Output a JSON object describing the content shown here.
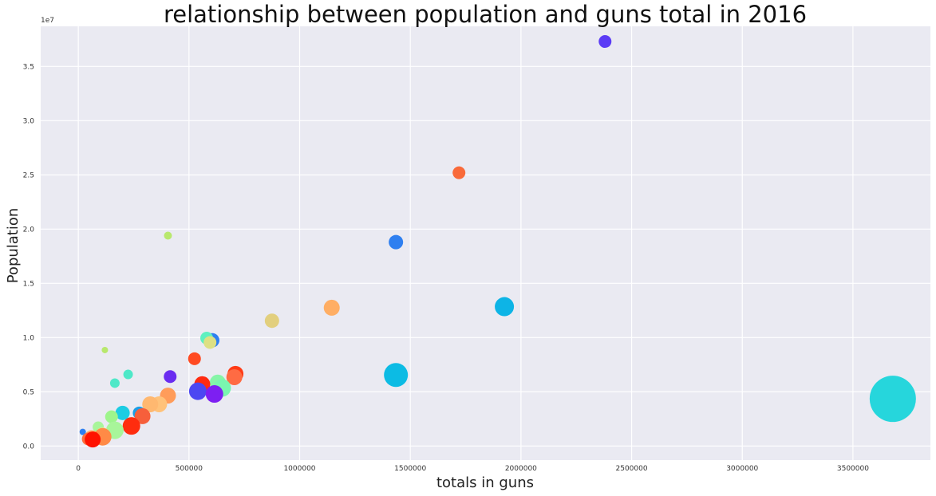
{
  "chart_data": {
    "type": "scatter",
    "title": "relationship between population and guns total in 2016",
    "xlabel": "totals in guns",
    "ylabel": "Population",
    "y_offset_label": "1e7",
    "xlim": [
      -170000,
      3850000
    ],
    "ylim": [
      -1300000,
      38700000
    ],
    "x_ticks": [
      {
        "value": 0,
        "label": "0"
      },
      {
        "value": 500000,
        "label": "500000"
      },
      {
        "value": 1000000,
        "label": "1000000"
      },
      {
        "value": 1500000,
        "label": "1500000"
      },
      {
        "value": 2000000,
        "label": "2000000"
      },
      {
        "value": 2500000,
        "label": "2500000"
      },
      {
        "value": 3000000,
        "label": "3000000"
      },
      {
        "value": 3500000,
        "label": "3500000"
      }
    ],
    "y_ticks": [
      {
        "value": 0,
        "label": "0.0"
      },
      {
        "value": 5000000,
        "label": "0.5"
      },
      {
        "value": 10000000,
        "label": "1.0"
      },
      {
        "value": 15000000,
        "label": "1.5"
      },
      {
        "value": 20000000,
        "label": "2.0"
      },
      {
        "value": 25000000,
        "label": "2.5"
      },
      {
        "value": 30000000,
        "label": "3.0"
      },
      {
        "value": 35000000,
        "label": "3.5"
      }
    ],
    "grid": true,
    "background": "#eaeaf2",
    "points": [
      {
        "x": 2380000,
        "y": 37300000,
        "size": 8,
        "color": "#5b3cf5"
      },
      {
        "x": 1720000,
        "y": 25200000,
        "size": 8,
        "color": "#f96a3a"
      },
      {
        "x": 405000,
        "y": 19400000,
        "size": 5,
        "color": "#b8e86d"
      },
      {
        "x": 1435000,
        "y": 18800000,
        "size": 9,
        "color": "#2e7ff0"
      },
      {
        "x": 1925000,
        "y": 12850000,
        "size": 12,
        "color": "#0db4e6"
      },
      {
        "x": 1145000,
        "y": 12750000,
        "size": 10,
        "color": "#ffae64"
      },
      {
        "x": 875000,
        "y": 11550000,
        "size": 9,
        "color": "#e2cf7e"
      },
      {
        "x": 605000,
        "y": 9750000,
        "size": 9,
        "color": "#2e7ff0"
      },
      {
        "x": 580000,
        "y": 9950000,
        "size": 8,
        "color": "#5ef0c0"
      },
      {
        "x": 595000,
        "y": 9550000,
        "size": 8,
        "color": "#dde083"
      },
      {
        "x": 120000,
        "y": 8850000,
        "size": 4,
        "color": "#b8e86d"
      },
      {
        "x": 525000,
        "y": 8050000,
        "size": 8,
        "color": "#ff4a22"
      },
      {
        "x": 225000,
        "y": 6600000,
        "size": 6,
        "color": "#4ee8c8"
      },
      {
        "x": 415000,
        "y": 6400000,
        "size": 8,
        "color": "#6a2cf0"
      },
      {
        "x": 1435000,
        "y": 6550000,
        "size": 15,
        "color": "#0cbbe4"
      },
      {
        "x": 710000,
        "y": 6650000,
        "size": 10,
        "color": "#ff3b16"
      },
      {
        "x": 705000,
        "y": 6350000,
        "size": 10,
        "color": "#ff6b43"
      },
      {
        "x": 165000,
        "y": 5800000,
        "size": 6,
        "color": "#4ee8c8"
      },
      {
        "x": 630000,
        "y": 5850000,
        "size": 10,
        "color": "#86f5a8"
      },
      {
        "x": 560000,
        "y": 5700000,
        "size": 10,
        "color": "#ff2a10"
      },
      {
        "x": 650000,
        "y": 5350000,
        "size": 11,
        "color": "#7af5b0"
      },
      {
        "x": 540000,
        "y": 5050000,
        "size": 11,
        "color": "#4c47f2"
      },
      {
        "x": 615000,
        "y": 4800000,
        "size": 11,
        "color": "#7d1ff2"
      },
      {
        "x": 405000,
        "y": 4650000,
        "size": 10,
        "color": "#ff9c5a"
      },
      {
        "x": 3680000,
        "y": 4350000,
        "size": 29,
        "color": "#26d6dc"
      },
      {
        "x": 365000,
        "y": 3850000,
        "size": 10,
        "color": "#ffc27a"
      },
      {
        "x": 325000,
        "y": 3850000,
        "size": 10,
        "color": "#ffb870"
      },
      {
        "x": 275000,
        "y": 3050000,
        "size": 8,
        "color": "#1a9ee6"
      },
      {
        "x": 200000,
        "y": 3050000,
        "size": 9,
        "color": "#1ccce3"
      },
      {
        "x": 290000,
        "y": 2750000,
        "size": 10,
        "color": "#f65f3b"
      },
      {
        "x": 150000,
        "y": 2700000,
        "size": 8,
        "color": "#9ef58c"
      },
      {
        "x": 240000,
        "y": 1850000,
        "size": 11,
        "color": "#ff2c0e"
      },
      {
        "x": 90000,
        "y": 1750000,
        "size": 7,
        "color": "#a8f59a"
      },
      {
        "x": 165000,
        "y": 1450000,
        "size": 11,
        "color": "#a8f59a"
      },
      {
        "x": 110000,
        "y": 1050000,
        "size": 9,
        "color": "#f2e39a"
      },
      {
        "x": 20000,
        "y": 1300000,
        "size": 4,
        "color": "#2e7ff0"
      },
      {
        "x": 60000,
        "y": 800000,
        "size": 9,
        "color": "#ffae6a"
      },
      {
        "x": 110000,
        "y": 850000,
        "size": 11,
        "color": "#ff8a46"
      },
      {
        "x": 45000,
        "y": 650000,
        "size": 8,
        "color": "#ff6d3c"
      },
      {
        "x": 65000,
        "y": 600000,
        "size": 10,
        "color": "#ff1200"
      }
    ]
  }
}
